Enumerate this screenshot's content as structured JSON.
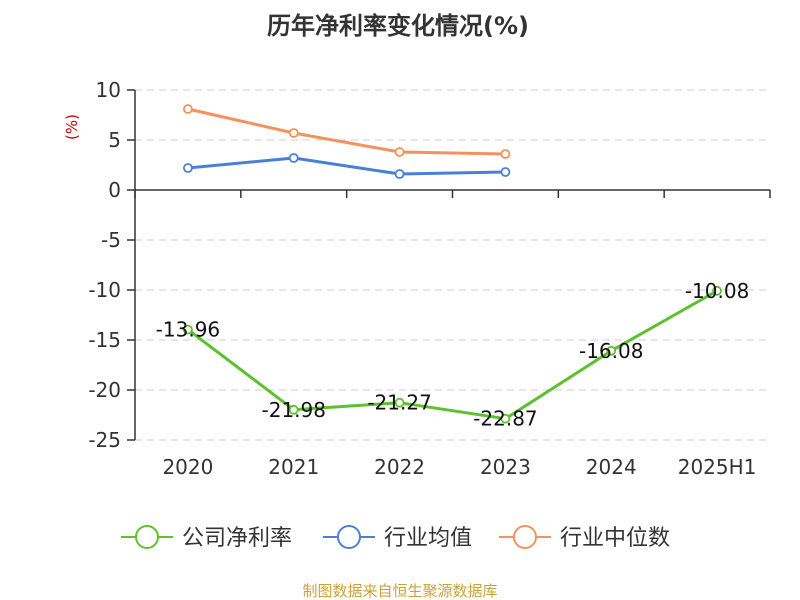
{
  "chart_data": {
    "type": "line",
    "title": "历年净利率变化情况(%)",
    "ylabel": "(%)",
    "categories": [
      "2020",
      "2021",
      "2022",
      "2023",
      "2024",
      "2025H1"
    ],
    "ylim": [
      -25,
      10
    ],
    "yticks": [
      10,
      5,
      0,
      -5,
      -10,
      -15,
      -20,
      -25
    ],
    "grid": true,
    "legend_position": "bottom",
    "series": [
      {
        "name": "公司净利率",
        "color": "#5cc12f",
        "values": [
          -13.96,
          -21.98,
          -21.27,
          -22.87,
          -16.08,
          -10.08
        ],
        "labels": [
          "-13.96",
          "-21.98",
          "-21.27",
          "-22.87",
          "-16.08",
          "-10.08"
        ]
      },
      {
        "name": "行业均值",
        "color": "#4a7fd9",
        "values": [
          2.2,
          3.2,
          1.6,
          1.8,
          null,
          null
        ]
      },
      {
        "name": "行业中位数",
        "color": "#f5915c",
        "values": [
          8.1,
          5.7,
          3.8,
          3.6,
          null,
          null
        ]
      }
    ]
  },
  "source": "制图数据来自恒生聚源数据库"
}
